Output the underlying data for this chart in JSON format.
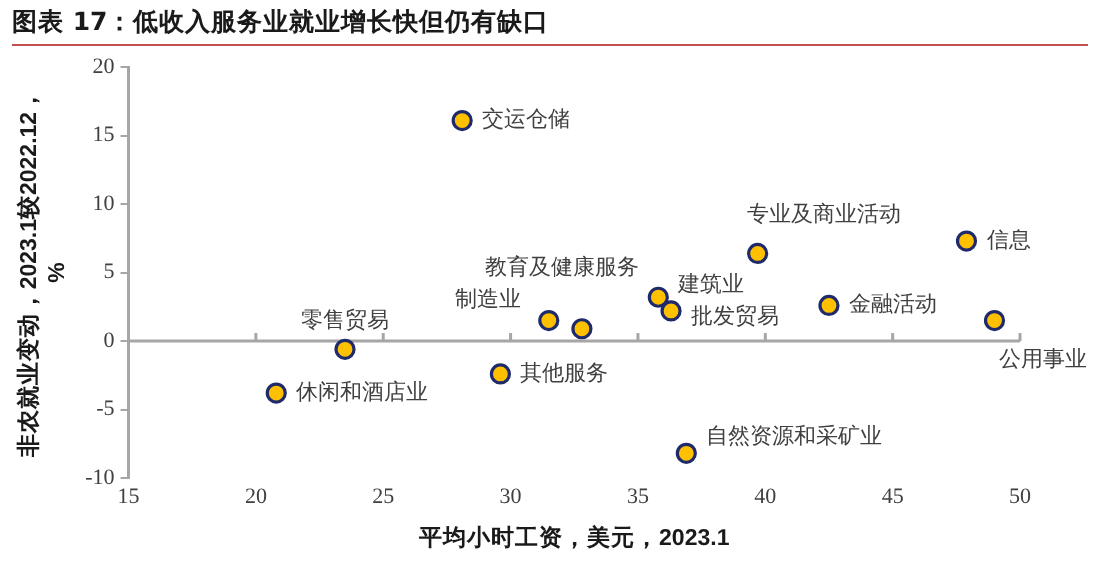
{
  "chart_data": {
    "type": "scatter",
    "title": "图表 17：低收入服务业就业增长快但仍有缺口",
    "xlabel": "平均小时工资，美元，2023.1",
    "ylabel": "非农就业变动，2023.1较2022.12，%",
    "x": [
      28.1,
      23.5,
      20.8,
      29.6,
      31.5,
      32.8,
      35.8,
      36.3,
      39.7,
      42.5,
      47.9,
      49.0,
      36.9
    ],
    "series": [
      {
        "color": "#ffc000",
        "values": [
          16.1,
          -0.6,
          -3.8,
          -2.4,
          1.5,
          0.9,
          3.2,
          2.2,
          6.4,
          2.6,
          7.3,
          1.5,
          -8.2
        ]
      }
    ],
    "marker": "circle",
    "grid": false,
    "legend": false,
    "xlim": [
      15,
      50
    ],
    "xticks": [
      15,
      20,
      25,
      30,
      35,
      40,
      45,
      50
    ],
    "ylim": [
      -10,
      20
    ],
    "yticks": [
      -10,
      -5,
      0,
      5,
      10,
      15,
      20
    ],
    "ref_lines": [
      {
        "axis": "y",
        "value": 0,
        "color": "#a6a6a6"
      }
    ],
    "annotations": [
      {
        "text": "交运仓储",
        "x": 28.1,
        "y": 16.1
      },
      {
        "text": "零售贸易",
        "x": 23.5,
        "y": -0.6
      },
      {
        "text": "休闲和酒店业",
        "x": 20.8,
        "y": -3.8
      },
      {
        "text": "其他服务",
        "x": 29.6,
        "y": -2.4
      },
      {
        "text": "制造业",
        "x": 31.5,
        "y": 1.5
      },
      {
        "text": "教育及健康服务",
        "x": 32.8,
        "y": 0.9
      },
      {
        "text": "建筑业",
        "x": 35.8,
        "y": 3.2
      },
      {
        "text": "批发贸易",
        "x": 36.3,
        "y": 2.2
      },
      {
        "text": "专业及商业活动",
        "x": 39.7,
        "y": 6.4
      },
      {
        "text": "金融活动",
        "x": 42.5,
        "y": 2.6
      },
      {
        "text": "信息",
        "x": 47.9,
        "y": 7.3
      },
      {
        "text": "公用事业",
        "x": 49.0,
        "y": 1.5
      },
      {
        "text": "自然资源和采矿业",
        "x": 36.9,
        "y": -8.2
      }
    ]
  }
}
